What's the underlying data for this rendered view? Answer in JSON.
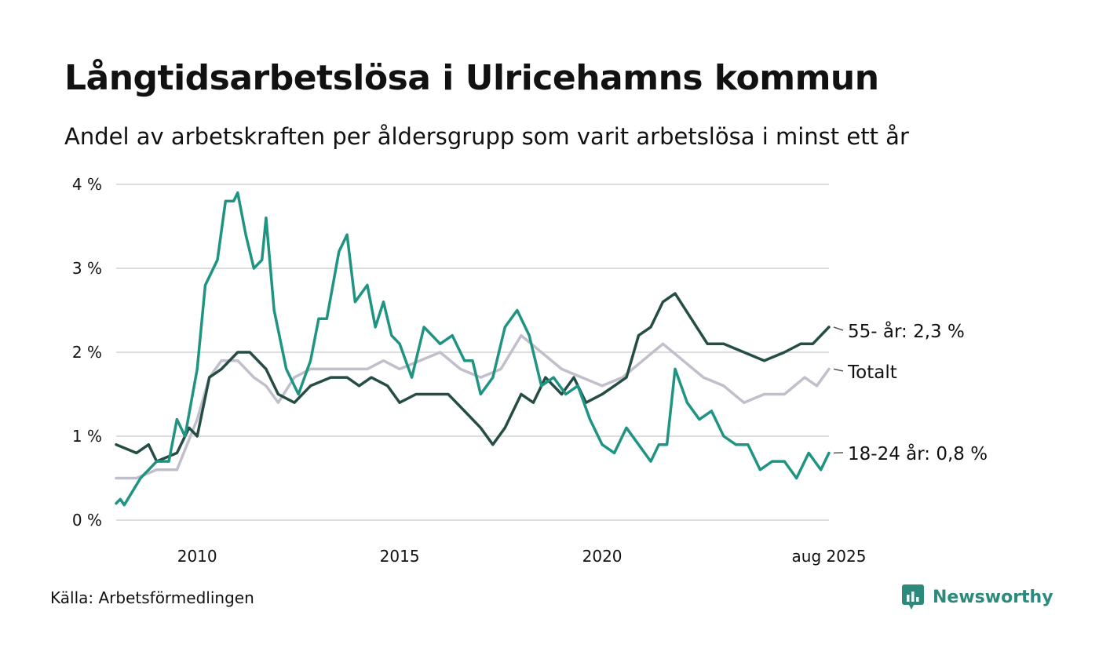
{
  "title": "Långtidsarbetslösa i Ulricehamns kommun",
  "subtitle": "Andel av arbetskraften per åldersgrupp som varit arbetslösa i minst ett år",
  "source": "Källa: Arbetsförmedlingen",
  "brand": "Newsworthy",
  "colors": {
    "young": "#1f9482",
    "old": "#264d45",
    "total": "#c2bfcc",
    "grid": "#dddddd",
    "brand": "#2b8a7b"
  },
  "chart_data": {
    "type": "line",
    "y_ticks": [
      {
        "value": 0,
        "label": "0 %"
      },
      {
        "value": 1,
        "label": "1 %"
      },
      {
        "value": 2,
        "label": "2 %"
      },
      {
        "value": 3,
        "label": "3 %"
      },
      {
        "value": 4,
        "label": "4 %"
      }
    ],
    "x_ticks": [
      {
        "value": 2010,
        "label": "2010"
      },
      {
        "value": 2015,
        "label": "2015"
      },
      {
        "value": 2020,
        "label": "2020"
      },
      {
        "value": 2025.6,
        "label": "aug 2025"
      }
    ],
    "xlim": [
      2008.0,
      2025.6
    ],
    "ylim": [
      0,
      4
    ],
    "grid": true,
    "series": [
      {
        "key": "total",
        "name": "Totalt",
        "label": "Totalt",
        "color": "#c2bfcc",
        "points": [
          [
            2008.0,
            0.5
          ],
          [
            2008.5,
            0.5
          ],
          [
            2009.0,
            0.6
          ],
          [
            2009.5,
            0.6
          ],
          [
            2010.0,
            1.2
          ],
          [
            2010.3,
            1.7
          ],
          [
            2010.6,
            1.9
          ],
          [
            2011.0,
            1.9
          ],
          [
            2011.4,
            1.7
          ],
          [
            2011.7,
            1.6
          ],
          [
            2012.0,
            1.4
          ],
          [
            2012.4,
            1.7
          ],
          [
            2012.8,
            1.8
          ],
          [
            2013.3,
            1.8
          ],
          [
            2013.8,
            1.8
          ],
          [
            2014.2,
            1.8
          ],
          [
            2014.6,
            1.9
          ],
          [
            2015.0,
            1.8
          ],
          [
            2015.5,
            1.9
          ],
          [
            2016.0,
            2.0
          ],
          [
            2016.5,
            1.8
          ],
          [
            2017.0,
            1.7
          ],
          [
            2017.5,
            1.8
          ],
          [
            2018.0,
            2.2
          ],
          [
            2018.5,
            2.0
          ],
          [
            2019.0,
            1.8
          ],
          [
            2019.5,
            1.7
          ],
          [
            2020.0,
            1.6
          ],
          [
            2020.5,
            1.7
          ],
          [
            2021.0,
            1.9
          ],
          [
            2021.5,
            2.1
          ],
          [
            2022.0,
            1.9
          ],
          [
            2022.5,
            1.7
          ],
          [
            2023.0,
            1.6
          ],
          [
            2023.5,
            1.4
          ],
          [
            2024.0,
            1.5
          ],
          [
            2024.5,
            1.5
          ],
          [
            2025.0,
            1.7
          ],
          [
            2025.3,
            1.6
          ],
          [
            2025.6,
            1.8
          ]
        ]
      },
      {
        "key": "old",
        "name": "55- år",
        "label": "55- år: 2,3 %",
        "color": "#264d45",
        "points": [
          [
            2008.0,
            0.9
          ],
          [
            2008.5,
            0.8
          ],
          [
            2008.8,
            0.9
          ],
          [
            2009.0,
            0.7
          ],
          [
            2009.5,
            0.8
          ],
          [
            2009.8,
            1.1
          ],
          [
            2010.0,
            1.0
          ],
          [
            2010.3,
            1.7
          ],
          [
            2010.6,
            1.8
          ],
          [
            2011.0,
            2.0
          ],
          [
            2011.3,
            2.0
          ],
          [
            2011.7,
            1.8
          ],
          [
            2012.0,
            1.5
          ],
          [
            2012.4,
            1.4
          ],
          [
            2012.8,
            1.6
          ],
          [
            2013.3,
            1.7
          ],
          [
            2013.7,
            1.7
          ],
          [
            2014.0,
            1.6
          ],
          [
            2014.3,
            1.7
          ],
          [
            2014.7,
            1.6
          ],
          [
            2015.0,
            1.4
          ],
          [
            2015.4,
            1.5
          ],
          [
            2015.8,
            1.5
          ],
          [
            2016.2,
            1.5
          ],
          [
            2016.6,
            1.3
          ],
          [
            2017.0,
            1.1
          ],
          [
            2017.3,
            0.9
          ],
          [
            2017.6,
            1.1
          ],
          [
            2018.0,
            1.5
          ],
          [
            2018.3,
            1.4
          ],
          [
            2018.6,
            1.7
          ],
          [
            2019.0,
            1.5
          ],
          [
            2019.3,
            1.7
          ],
          [
            2019.6,
            1.4
          ],
          [
            2020.0,
            1.5
          ],
          [
            2020.3,
            1.6
          ],
          [
            2020.6,
            1.7
          ],
          [
            2020.9,
            2.2
          ],
          [
            2021.2,
            2.3
          ],
          [
            2021.5,
            2.6
          ],
          [
            2021.8,
            2.7
          ],
          [
            2022.2,
            2.4
          ],
          [
            2022.6,
            2.1
          ],
          [
            2023.0,
            2.1
          ],
          [
            2023.5,
            2.0
          ],
          [
            2024.0,
            1.9
          ],
          [
            2024.5,
            2.0
          ],
          [
            2024.9,
            2.1
          ],
          [
            2025.2,
            2.1
          ],
          [
            2025.6,
            2.3
          ]
        ]
      },
      {
        "key": "young",
        "name": "18-24 år",
        "label": "18-24 år: 0,8 %",
        "color": "#1f9482",
        "points": [
          [
            2008.0,
            0.2
          ],
          [
            2008.1,
            0.25
          ],
          [
            2008.2,
            0.18
          ],
          [
            2008.6,
            0.5
          ],
          [
            2009.0,
            0.7
          ],
          [
            2009.3,
            0.7
          ],
          [
            2009.5,
            1.2
          ],
          [
            2009.7,
            1.0
          ],
          [
            2010.0,
            1.8
          ],
          [
            2010.2,
            2.8
          ],
          [
            2010.3,
            2.9
          ],
          [
            2010.5,
            3.1
          ],
          [
            2010.7,
            3.8
          ],
          [
            2010.9,
            3.8
          ],
          [
            2011.0,
            3.9
          ],
          [
            2011.2,
            3.4
          ],
          [
            2011.4,
            3.0
          ],
          [
            2011.6,
            3.1
          ],
          [
            2011.7,
            3.6
          ],
          [
            2011.9,
            2.5
          ],
          [
            2012.2,
            1.8
          ],
          [
            2012.5,
            1.5
          ],
          [
            2012.8,
            1.9
          ],
          [
            2013.0,
            2.4
          ],
          [
            2013.2,
            2.4
          ],
          [
            2013.5,
            3.2
          ],
          [
            2013.7,
            3.4
          ],
          [
            2013.9,
            2.6
          ],
          [
            2014.2,
            2.8
          ],
          [
            2014.4,
            2.3
          ],
          [
            2014.6,
            2.6
          ],
          [
            2014.8,
            2.2
          ],
          [
            2015.0,
            2.1
          ],
          [
            2015.3,
            1.7
          ],
          [
            2015.6,
            2.3
          ],
          [
            2016.0,
            2.1
          ],
          [
            2016.3,
            2.2
          ],
          [
            2016.6,
            1.9
          ],
          [
            2016.8,
            1.9
          ],
          [
            2017.0,
            1.5
          ],
          [
            2017.3,
            1.7
          ],
          [
            2017.6,
            2.3
          ],
          [
            2017.9,
            2.5
          ],
          [
            2018.2,
            2.2
          ],
          [
            2018.5,
            1.6
          ],
          [
            2018.8,
            1.7
          ],
          [
            2019.1,
            1.5
          ],
          [
            2019.4,
            1.6
          ],
          [
            2019.7,
            1.2
          ],
          [
            2020.0,
            0.9
          ],
          [
            2020.3,
            0.8
          ],
          [
            2020.6,
            1.1
          ],
          [
            2020.9,
            0.9
          ],
          [
            2021.2,
            0.7
          ],
          [
            2021.4,
            0.9
          ],
          [
            2021.6,
            0.9
          ],
          [
            2021.8,
            1.8
          ],
          [
            2022.1,
            1.4
          ],
          [
            2022.4,
            1.2
          ],
          [
            2022.7,
            1.3
          ],
          [
            2023.0,
            1.0
          ],
          [
            2023.3,
            0.9
          ],
          [
            2023.6,
            0.9
          ],
          [
            2023.9,
            0.6
          ],
          [
            2024.2,
            0.7
          ],
          [
            2024.5,
            0.7
          ],
          [
            2024.8,
            0.5
          ],
          [
            2025.1,
            0.8
          ],
          [
            2025.4,
            0.6
          ],
          [
            2025.6,
            0.8
          ]
        ]
      }
    ]
  }
}
